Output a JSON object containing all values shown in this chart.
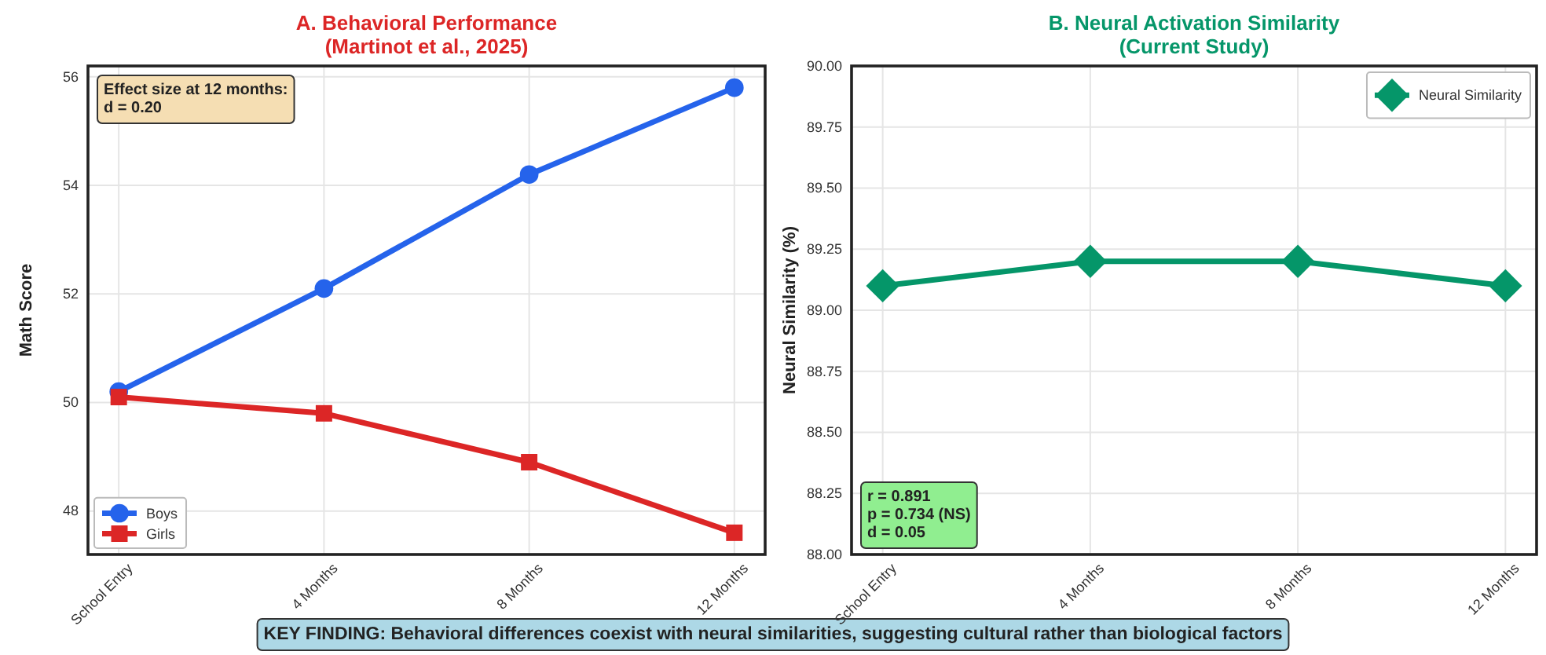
{
  "chart_data": [
    {
      "type": "line",
      "title": "A. Behavioral Performance\n(Martinot et al., 2025)",
      "ylabel": "Math Score",
      "categories": [
        "School Entry",
        "4 Months",
        "8 Months",
        "12 Months"
      ],
      "series": [
        {
          "name": "Boys",
          "color": "#2563eb",
          "marker": "circle",
          "values": [
            50.2,
            52.1,
            54.2,
            55.8
          ]
        },
        {
          "name": "Girls",
          "color": "#dc2626",
          "marker": "square",
          "values": [
            50.1,
            49.8,
            48.9,
            47.6
          ]
        }
      ],
      "ylim": [
        47.2,
        56.2
      ],
      "yticks": [
        48,
        50,
        52,
        54,
        56
      ],
      "grid": true,
      "legend": "bottom left",
      "annotations": [
        "Effect size at 12 months:\nd = 0.20",
        "KEY FINDING: Behavioral differences coexist with neural similarities, suggesting cultural rather than biological factors"
      ]
    },
    {
      "type": "line",
      "title": "B. Neural Activation Similarity\n(Current Study)",
      "ylabel": "Neural Similarity (%)",
      "categories": [
        "School Entry",
        "4 Months",
        "8 Months",
        "12 Months"
      ],
      "series": [
        {
          "name": "Neural Similarity",
          "color": "#059669",
          "marker": "diamond",
          "values": [
            89.1,
            89.2,
            89.2,
            89.1
          ]
        }
      ],
      "ylim": [
        88,
        90
      ],
      "yticks": [
        {
          "value": 88,
          "label": "88.00"
        },
        {
          "value": 88.25,
          "label": "88.25"
        },
        {
          "value": 88.5,
          "label": "88.50"
        },
        {
          "value": 88.75,
          "label": "88.75"
        },
        {
          "value": 89,
          "label": "89.00"
        },
        {
          "value": 89.25,
          "label": "89.25"
        },
        {
          "value": 89.5,
          "label": "89.50"
        },
        {
          "value": 89.75,
          "label": "89.75"
        },
        {
          "value": 90,
          "label": "90.00"
        }
      ],
      "grid": true,
      "legend": "top right",
      "annotations": [
        "r = 0.891\np = 0.734 (NS)\nd = 0.05"
      ]
    }
  ]
}
